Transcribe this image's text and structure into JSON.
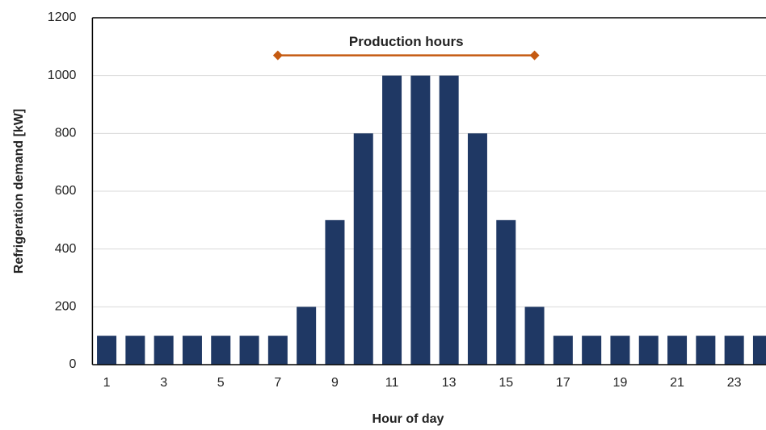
{
  "chart_data": {
    "type": "bar",
    "x_label": "Hour of day",
    "y_label": "Refrigeration demand [kW]",
    "categories": [
      "1",
      null,
      "3",
      null,
      "5",
      null,
      "7",
      null,
      "9",
      null,
      "11",
      null,
      "13",
      null,
      "15",
      null,
      "17",
      null,
      "19",
      null,
      "21",
      null,
      "23",
      null
    ],
    "values": [
      100,
      100,
      100,
      100,
      100,
      100,
      100,
      200,
      500,
      800,
      1000,
      1000,
      1000,
      800,
      500,
      200,
      100,
      100,
      100,
      100,
      100,
      100,
      100,
      100
    ],
    "color": "#1f3864",
    "ylim": [
      0,
      1200
    ],
    "yticks": [
      0,
      200,
      400,
      600,
      800,
      1000,
      1200
    ],
    "grid": true,
    "annotation": {
      "text": "Production hours",
      "start": 7,
      "end": 16,
      "y": 1070,
      "color": "#c55a11"
    }
  }
}
